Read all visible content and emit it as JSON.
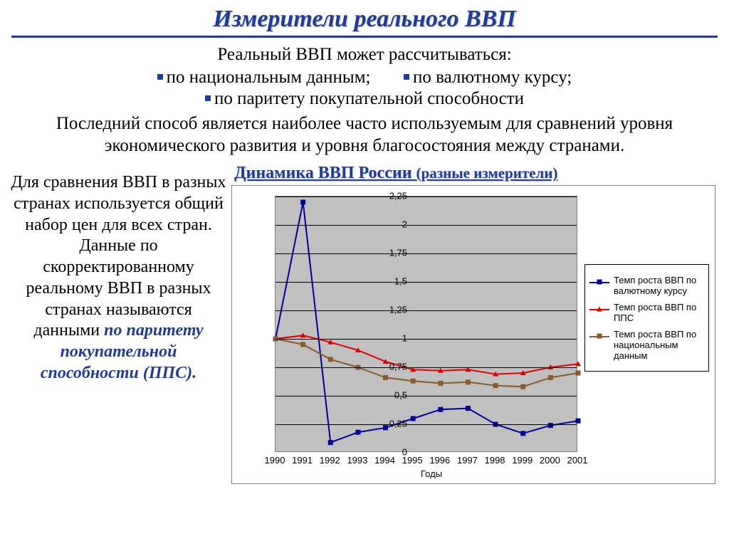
{
  "title": "Измерители реального ВВП",
  "intro": "Реальный ВВП может рассчитываться:",
  "bullets": {
    "b1": "по национальным данным;",
    "b2": "по валютному курсу;",
    "b3": "по паритету покупательной способности"
  },
  "paragraph": "Последний способ является наиболее часто используемым для сравнений уровня экономического развития и уровня благосостояния между странами.",
  "left_text_pre": "Для сравнения ВВП в разных странах используется общий набор цен для всех стран. Данные по скорректированному реальному ВВП в разных странах называются данными ",
  "left_text_em": "по паритету покупательной способности (ППС).",
  "chart": {
    "title_main": "Динамика ВВП России ",
    "title_sub": "(разные измерители)",
    "type": "line",
    "xlabel": "Годы",
    "years": [
      1990,
      1991,
      1992,
      1993,
      1994,
      1995,
      1996,
      1997,
      1998,
      1999,
      2000,
      2001
    ],
    "ylim": [
      0,
      2.25
    ],
    "yticks": [
      0,
      0.25,
      0.5,
      0.75,
      1,
      1.25,
      1.5,
      1.75,
      2,
      2.25
    ],
    "ytick_labels": [
      "0",
      "0,25",
      "0,5",
      "0,75",
      "1",
      "1,25",
      "1,5",
      "1,75",
      "2",
      "2,25"
    ],
    "plot_bg": "#c0c0c0",
    "grid_color": "#000000",
    "border_color": "#808080",
    "legend_border": "#000000",
    "series": [
      {
        "name": "Темп роста ВВП по валютному курсу",
        "color": "#000099",
        "marker": "square",
        "line_width": 2,
        "data": [
          1.0,
          2.2,
          0.09,
          0.18,
          0.22,
          0.3,
          0.38,
          0.39,
          0.25,
          0.17,
          0.24,
          0.28
        ]
      },
      {
        "name": "Темп роста ВВП по ППС",
        "color": "#e00000",
        "marker": "triangle",
        "line_width": 2,
        "data": [
          1.0,
          1.03,
          0.97,
          0.9,
          0.8,
          0.73,
          0.72,
          0.73,
          0.69,
          0.7,
          0.75,
          0.78
        ]
      },
      {
        "name": "Темп роста ВВП по национальным данным",
        "color": "#8b5a2b",
        "marker": "square",
        "line_width": 2,
        "data": [
          1.0,
          0.95,
          0.82,
          0.75,
          0.66,
          0.63,
          0.61,
          0.62,
          0.59,
          0.58,
          0.66,
          0.7
        ]
      }
    ]
  }
}
